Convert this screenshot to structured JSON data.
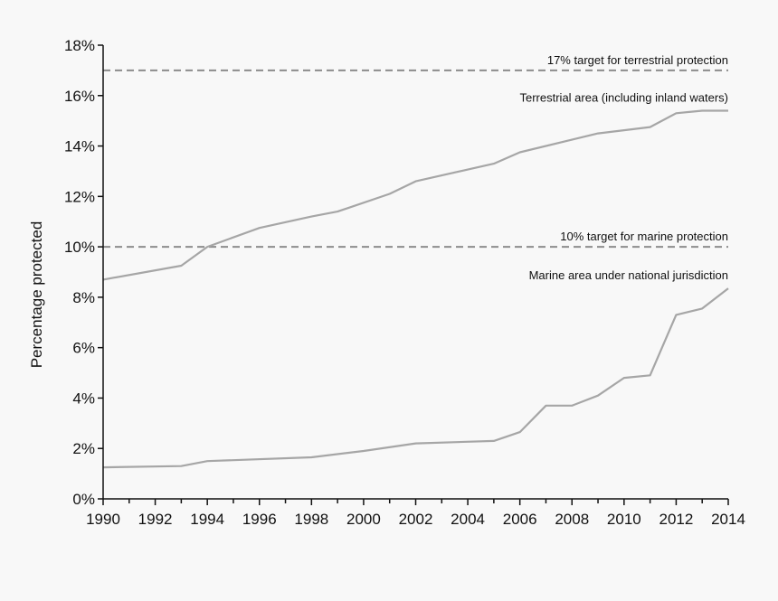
{
  "colors": {
    "background": "#f8f8f8",
    "axis": "#111111",
    "series_line": "#a6a6a6",
    "target_line": "#8c8c8c",
    "text": "#111111"
  },
  "chart_data": {
    "type": "line",
    "title": "",
    "xlabel": "",
    "ylabel": "Percentage protected",
    "xlim": [
      1990,
      2014
    ],
    "ylim": [
      0,
      18
    ],
    "grid": false,
    "legend": "none",
    "x_ticks": [
      "1990",
      "1992",
      "1994",
      "1996",
      "1998",
      "2000",
      "2002",
      "2004",
      "2006",
      "2008",
      "2010",
      "2012",
      "2014"
    ],
    "y_ticks": [
      "0%",
      "2%",
      "4%",
      "6%",
      "8%",
      "10%",
      "12%",
      "14%",
      "16%",
      "18%"
    ],
    "series": [
      {
        "name": "Terrestrial area (including inland waters)",
        "x": [
          1990,
          1993,
          1994,
          1996,
          1998,
          1999,
          2001,
          2002,
          2005,
          2006,
          2009,
          2011,
          2012,
          2013,
          2014
        ],
        "y": [
          8.7,
          9.25,
          10.0,
          10.75,
          11.2,
          11.4,
          12.1,
          12.6,
          13.3,
          13.75,
          14.5,
          14.75,
          15.3,
          15.4,
          15.4
        ]
      },
      {
        "name": "Marine area under national jurisdiction",
        "x": [
          1990,
          1993,
          1994,
          1998,
          2000,
          2002,
          2005,
          2006,
          2007,
          2008,
          2009,
          2010,
          2011,
          2012,
          2013,
          2014
        ],
        "y": [
          1.25,
          1.3,
          1.5,
          1.65,
          1.9,
          2.2,
          2.3,
          2.65,
          3.7,
          3.7,
          4.1,
          4.8,
          4.9,
          7.3,
          7.55,
          8.35
        ]
      }
    ],
    "reference_lines": [
      {
        "label": "17% target for terrestrial protection",
        "y": 17,
        "style": "dashed"
      },
      {
        "label": "10% target for marine protection",
        "y": 10,
        "style": "dashed"
      }
    ]
  }
}
